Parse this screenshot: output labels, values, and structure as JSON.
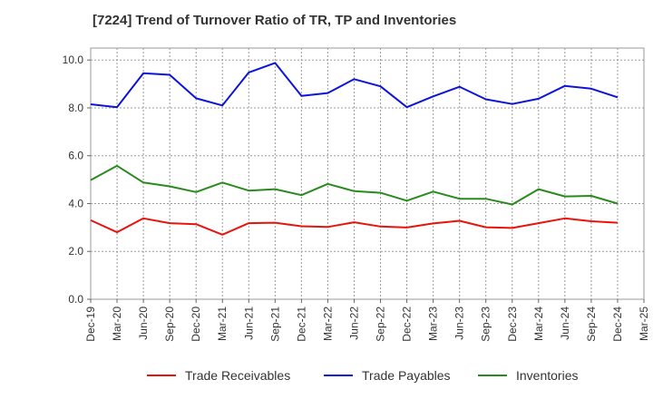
{
  "chart_data": {
    "type": "line",
    "title": "[7224]  Trend of Turnover Ratio of TR, TP and Inventories",
    "xlabel": "",
    "ylabel": "",
    "ylim": [
      0,
      10.5
    ],
    "yticks": [
      "0.0",
      "2.0",
      "4.0",
      "6.0",
      "8.0",
      "10.0"
    ],
    "grid": true,
    "legend_position": "bottom",
    "x_tick_labels": [
      "Dec-19",
      "Mar-20",
      "Jun-20",
      "Sep-20",
      "Dec-20",
      "Mar-21",
      "Jun-21",
      "Sep-21",
      "Dec-21",
      "Mar-22",
      "Jun-22",
      "Sep-22",
      "Dec-22",
      "Mar-23",
      "Jun-23",
      "Sep-23",
      "Dec-23",
      "Mar-24",
      "Jun-24",
      "Sep-24",
      "Dec-24",
      "Mar-25"
    ],
    "x": [
      "Dec-19",
      "Mar-20",
      "Jun-20",
      "Sep-20",
      "Dec-20",
      "Mar-21",
      "Jun-21",
      "Sep-21",
      "Dec-21",
      "Mar-22",
      "Jun-22",
      "Sep-22",
      "Dec-22",
      "Mar-23",
      "Jun-23",
      "Sep-23",
      "Dec-23",
      "Mar-24",
      "Jun-24",
      "Sep-24",
      "Dec-24"
    ],
    "series": [
      {
        "name": "Trade Receivables",
        "color": "#e8140c",
        "values": [
          3.3,
          2.8,
          3.38,
          3.18,
          3.14,
          2.7,
          3.18,
          3.2,
          3.05,
          3.02,
          3.22,
          3.04,
          3.0,
          3.17,
          3.28,
          3.01,
          2.98,
          3.18,
          3.38,
          3.26,
          3.2
        ]
      },
      {
        "name": "Trade Payables",
        "color": "#0c14d8",
        "values": [
          8.15,
          8.03,
          9.45,
          9.38,
          8.4,
          8.1,
          9.48,
          9.88,
          8.5,
          8.62,
          9.2,
          8.9,
          8.03,
          8.48,
          8.88,
          8.36,
          8.16,
          8.38,
          8.92,
          8.8,
          8.44
        ]
      },
      {
        "name": "Inventories",
        "color": "#2a8a1e",
        "values": [
          4.98,
          5.58,
          4.88,
          4.72,
          4.48,
          4.88,
          4.54,
          4.6,
          4.35,
          4.82,
          4.52,
          4.45,
          4.12,
          4.5,
          4.2,
          4.2,
          3.96,
          4.6,
          4.3,
          4.32,
          4.0
        ]
      }
    ]
  }
}
